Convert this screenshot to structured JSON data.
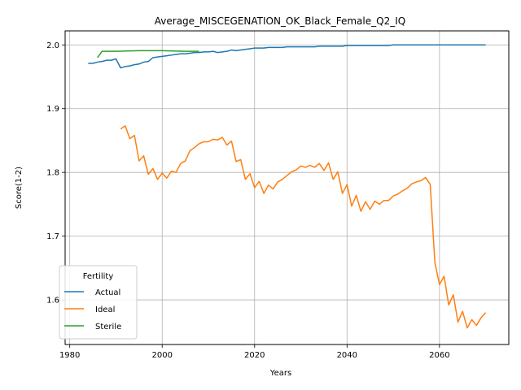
{
  "chart_data": {
    "type": "line",
    "title": "Average_MISCEGENATION_OK_Black_Female_Q2_IQ",
    "xlabel": "Years",
    "ylabel": "Score(1-2)",
    "xlim": [
      1979,
      2075
    ],
    "ylim": [
      1.53,
      2.022
    ],
    "xticks": [
      1980,
      2000,
      2020,
      2040,
      2060
    ],
    "xtick_labels": [
      "1980",
      "2000",
      "2020",
      "2040",
      "2060"
    ],
    "yticks": [
      1.6,
      1.7,
      1.8,
      1.9,
      2.0
    ],
    "ytick_labels": [
      "1.6",
      "1.7",
      "1.8",
      "1.9",
      "2.0"
    ],
    "grid": true,
    "legend": {
      "title": "Fertility",
      "placement": "lower-left"
    },
    "series": [
      {
        "name": "Actual",
        "color": "#1f77b4",
        "x": [
          1984,
          1985,
          1986,
          1987,
          1988,
          1989,
          1990,
          1991,
          1992,
          1993,
          1994,
          1995,
          1996,
          1997,
          1998,
          1999,
          2000,
          2001,
          2002,
          2003,
          2004,
          2005,
          2006,
          2007,
          2008,
          2009,
          2010,
          2011,
          2012,
          2013,
          2014,
          2015,
          2016,
          2017,
          2018,
          2019,
          2020,
          2021,
          2022,
          2023,
          2024,
          2025,
          2026,
          2027,
          2028,
          2029,
          2030,
          2031,
          2032,
          2033,
          2034,
          2035,
          2036,
          2037,
          2038,
          2039,
          2040,
          2041,
          2042,
          2043,
          2044,
          2045,
          2046,
          2047,
          2048,
          2049,
          2050,
          2051,
          2052,
          2053,
          2054,
          2055,
          2056,
          2057,
          2058,
          2059,
          2060,
          2061,
          2062,
          2063,
          2064,
          2065,
          2066,
          2067,
          2068,
          2069,
          2070
        ],
        "y": [
          1.971,
          1.971,
          1.973,
          1.974,
          1.976,
          1.976,
          1.978,
          1.964,
          1.966,
          1.967,
          1.969,
          1.97,
          1.973,
          1.974,
          1.98,
          1.981,
          1.982,
          1.983,
          1.984,
          1.985,
          1.986,
          1.986,
          1.987,
          1.988,
          1.988,
          1.989,
          1.989,
          1.99,
          1.988,
          1.989,
          1.99,
          1.992,
          1.991,
          1.992,
          1.993,
          1.994,
          1.995,
          1.995,
          1.995,
          1.996,
          1.996,
          1.996,
          1.996,
          1.997,
          1.997,
          1.997,
          1.997,
          1.997,
          1.997,
          1.997,
          1.998,
          1.998,
          1.998,
          1.998,
          1.998,
          1.998,
          1.999,
          1.999,
          1.999,
          1.999,
          1.999,
          1.999,
          1.999,
          1.999,
          1.999,
          1.999,
          2.0,
          2.0,
          2.0,
          2.0,
          2.0,
          2.0,
          2.0,
          2.0,
          2.0,
          2.0,
          2.0,
          2.0,
          2.0,
          2.0,
          2.0,
          2.0,
          2.0,
          2.0,
          2.0,
          2.0,
          2.0
        ]
      },
      {
        "name": "Ideal",
        "color": "#ff7f0e",
        "x": [
          1991,
          1992,
          1993,
          1994,
          1995,
          1996,
          1997,
          1998,
          1999,
          2000,
          2001,
          2002,
          2003,
          2004,
          2005,
          2006,
          2007,
          2008,
          2009,
          2010,
          2011,
          2012,
          2013,
          2014,
          2015,
          2016,
          2017,
          2018,
          2019,
          2020,
          2021,
          2022,
          2023,
          2024,
          2025,
          2026,
          2027,
          2028,
          2029,
          2030,
          2031,
          2032,
          2033,
          2034,
          2035,
          2036,
          2037,
          2038,
          2039,
          2040,
          2041,
          2042,
          2043,
          2044,
          2045,
          2046,
          2047,
          2048,
          2049,
          2050,
          2051,
          2052,
          2053,
          2054,
          2055,
          2056,
          2057,
          2058,
          2059,
          2060,
          2061,
          2062,
          2063,
          2064,
          2065,
          2066,
          2067,
          2068,
          2069,
          2070
        ],
        "y": [
          1.868,
          1.873,
          1.853,
          1.858,
          1.818,
          1.826,
          1.797,
          1.806,
          1.789,
          1.799,
          1.791,
          1.802,
          1.8,
          1.814,
          1.818,
          1.834,
          1.839,
          1.845,
          1.848,
          1.848,
          1.852,
          1.851,
          1.855,
          1.843,
          1.849,
          1.817,
          1.82,
          1.789,
          1.798,
          1.776,
          1.786,
          1.767,
          1.78,
          1.774,
          1.785,
          1.789,
          1.795,
          1.801,
          1.804,
          1.81,
          1.808,
          1.811,
          1.808,
          1.814,
          1.803,
          1.815,
          1.789,
          1.801,
          1.767,
          1.781,
          1.747,
          1.764,
          1.739,
          1.754,
          1.742,
          1.755,
          1.75,
          1.756,
          1.756,
          1.763,
          1.766,
          1.771,
          1.775,
          1.782,
          1.785,
          1.787,
          1.792,
          1.781,
          1.659,
          1.624,
          1.637,
          1.592,
          1.608,
          1.565,
          1.582,
          1.556,
          1.569,
          1.56,
          1.572,
          1.58
        ]
      },
      {
        "name": "Sterile",
        "color": "#2ca02c",
        "x": [
          1986,
          1987,
          1990,
          1995,
          2000,
          2005,
          2008
        ],
        "y": [
          1.98,
          1.99,
          1.99,
          1.991,
          1.991,
          1.99,
          1.99
        ]
      }
    ]
  }
}
